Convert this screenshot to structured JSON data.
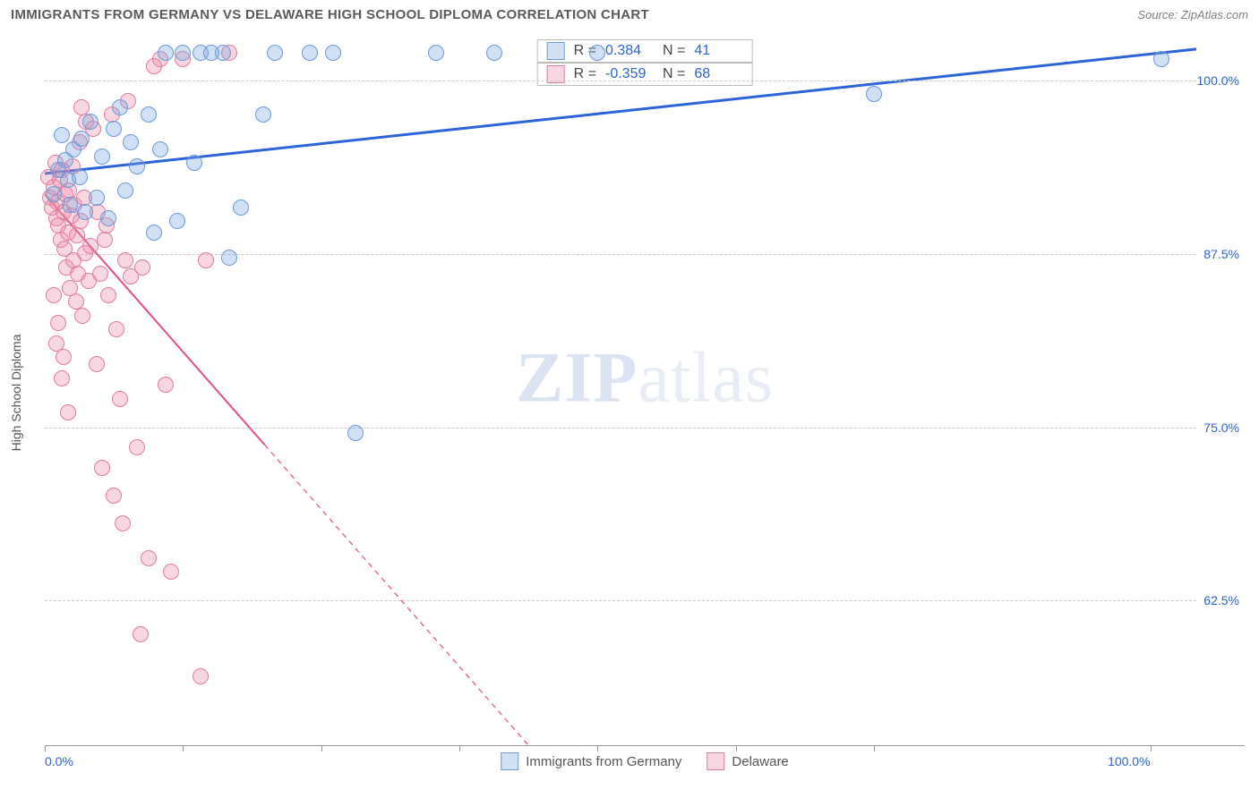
{
  "header": {
    "title": "IMMIGRANTS FROM GERMANY VS DELAWARE HIGH SCHOOL DIPLOMA CORRELATION CHART",
    "source_prefix": "Source: ",
    "source_name": "ZipAtlas.com"
  },
  "watermark": {
    "zip": "ZIP",
    "atlas": "atlas"
  },
  "chart": {
    "type": "scatter",
    "ylabel": "High School Diploma",
    "xlim": [
      0,
      100
    ],
    "ylim": [
      52,
      103
    ],
    "xticks": [
      0,
      12,
      24,
      36,
      48,
      60,
      72,
      96
    ],
    "xtick_labels": {
      "0": "0.0%",
      "96": "100.0%"
    },
    "yticks": [
      62.5,
      75.0,
      87.5,
      100.0
    ],
    "ytick_labels": [
      "62.5%",
      "75.0%",
      "87.5%",
      "100.0%"
    ],
    "grid_color": "#c9c9c9",
    "background": "#ffffff",
    "axis_color": "#999999",
    "label_color": "#2b64d8",
    "marker_radius": 9,
    "series": {
      "germany": {
        "label": "Immigrants from Germany",
        "fill": "rgba(120,165,225,0.35)",
        "stroke": "#6a9ad8",
        "line_color": "#2b64d8",
        "line_width": 3,
        "dash": "none",
        "R": "0.384",
        "N": "41",
        "trend": {
          "x1": 0,
          "y1": 93.3,
          "x2": 100,
          "y2": 102.3
        },
        "points": [
          [
            0.8,
            91.8
          ],
          [
            1.2,
            93.5
          ],
          [
            1.5,
            96.0
          ],
          [
            1.8,
            94.2
          ],
          [
            2.0,
            92.8
          ],
          [
            2.2,
            91.0
          ],
          [
            2.5,
            95.0
          ],
          [
            3.0,
            93.0
          ],
          [
            3.2,
            95.8
          ],
          [
            3.5,
            90.5
          ],
          [
            4.0,
            97.0
          ],
          [
            4.5,
            91.5
          ],
          [
            5.0,
            94.5
          ],
          [
            5.5,
            90.0
          ],
          [
            6.0,
            96.5
          ],
          [
            6.5,
            98.0
          ],
          [
            7.0,
            92.0
          ],
          [
            7.5,
            95.5
          ],
          [
            8.0,
            93.8
          ],
          [
            9.0,
            97.5
          ],
          [
            9.5,
            89.0
          ],
          [
            10.0,
            95.0
          ],
          [
            10.5,
            102.0
          ],
          [
            11.5,
            89.8
          ],
          [
            12.0,
            102.0
          ],
          [
            13.0,
            94.0
          ],
          [
            13.5,
            102.0
          ],
          [
            14.5,
            102.0
          ],
          [
            15.5,
            102.0
          ],
          [
            16.0,
            87.2
          ],
          [
            17.0,
            90.8
          ],
          [
            19.0,
            97.5
          ],
          [
            20.0,
            102.0
          ],
          [
            23.0,
            102.0
          ],
          [
            25.0,
            102.0
          ],
          [
            27.0,
            74.5
          ],
          [
            34.0,
            102.0
          ],
          [
            39.0,
            102.0
          ],
          [
            48.0,
            102.0
          ],
          [
            72.0,
            99.0
          ],
          [
            97.0,
            101.5
          ]
        ]
      },
      "delaware": {
        "label": "Delaware",
        "fill": "rgba(238,140,170,0.35)",
        "stroke": "#e17ba0",
        "line_color": "#e24f80",
        "line_width": 2,
        "dash": "6 5",
        "R": "-0.359",
        "N": "68",
        "trend": {
          "x1": 0,
          "y1": 91.8,
          "x2": 42,
          "y2": 52.0
        },
        "points": [
          [
            0.3,
            93.0
          ],
          [
            0.5,
            91.5
          ],
          [
            0.6,
            90.8
          ],
          [
            0.8,
            92.3
          ],
          [
            0.9,
            94.0
          ],
          [
            1.0,
            90.0
          ],
          [
            1.1,
            91.2
          ],
          [
            1.2,
            89.5
          ],
          [
            1.3,
            92.8
          ],
          [
            1.4,
            88.5
          ],
          [
            1.5,
            93.5
          ],
          [
            1.6,
            90.5
          ],
          [
            1.7,
            87.8
          ],
          [
            1.8,
            91.8
          ],
          [
            1.9,
            86.5
          ],
          [
            2.0,
            89.0
          ],
          [
            2.1,
            92.0
          ],
          [
            2.2,
            85.0
          ],
          [
            2.3,
            90.2
          ],
          [
            2.4,
            93.8
          ],
          [
            2.5,
            87.0
          ],
          [
            2.6,
            91.0
          ],
          [
            2.7,
            84.0
          ],
          [
            2.8,
            88.8
          ],
          [
            2.9,
            86.0
          ],
          [
            3.0,
            95.5
          ],
          [
            3.1,
            89.8
          ],
          [
            3.2,
            98.0
          ],
          [
            3.3,
            83.0
          ],
          [
            3.5,
            87.5
          ],
          [
            3.6,
            97.0
          ],
          [
            3.8,
            85.5
          ],
          [
            4.0,
            88.0
          ],
          [
            4.2,
            96.5
          ],
          [
            4.5,
            79.5
          ],
          [
            4.8,
            86.0
          ],
          [
            5.0,
            72.0
          ],
          [
            5.2,
            88.5
          ],
          [
            5.5,
            84.5
          ],
          [
            5.8,
            97.5
          ],
          [
            6.0,
            70.0
          ],
          [
            6.2,
            82.0
          ],
          [
            6.5,
            77.0
          ],
          [
            6.8,
            68.0
          ],
          [
            7.0,
            87.0
          ],
          [
            7.2,
            98.5
          ],
          [
            7.5,
            85.8
          ],
          [
            8.0,
            73.5
          ],
          [
            8.3,
            60.0
          ],
          [
            8.5,
            86.5
          ],
          [
            9.0,
            65.5
          ],
          [
            9.5,
            101.0
          ],
          [
            10.0,
            101.5
          ],
          [
            10.5,
            78.0
          ],
          [
            11.0,
            64.5
          ],
          [
            12.0,
            101.5
          ],
          [
            13.5,
            57.0
          ],
          [
            14.0,
            87.0
          ],
          [
            16.0,
            102.0
          ],
          [
            1.0,
            81.0
          ],
          [
            1.5,
            78.5
          ],
          [
            2.0,
            76.0
          ],
          [
            0.8,
            84.5
          ],
          [
            1.2,
            82.5
          ],
          [
            1.6,
            80.0
          ],
          [
            3.4,
            91.5
          ],
          [
            4.6,
            90.5
          ],
          [
            5.4,
            89.5
          ]
        ]
      }
    }
  },
  "legend_top": {
    "r_label": "R =",
    "n_label": "N ="
  }
}
